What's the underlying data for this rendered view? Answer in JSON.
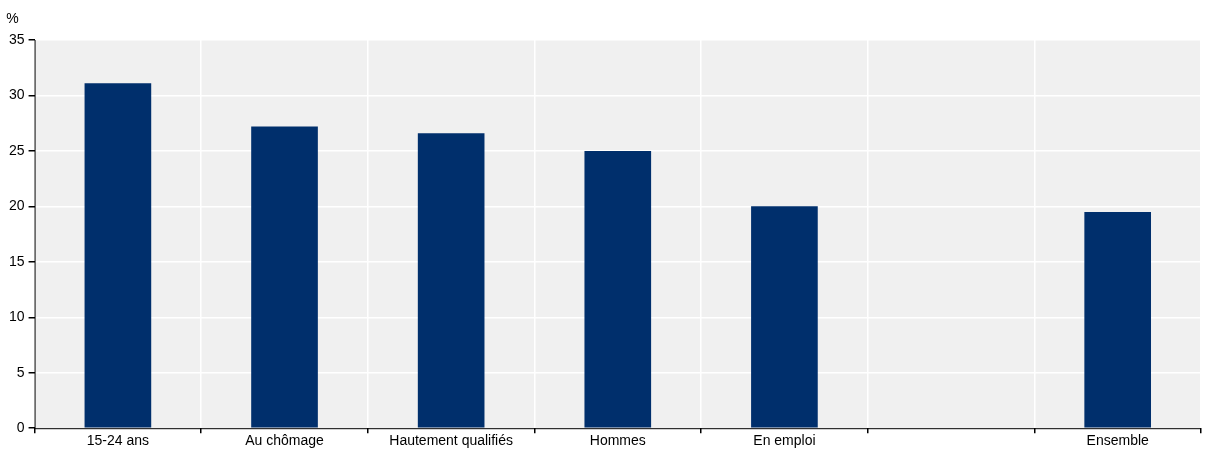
{
  "chart_data": {
    "type": "bar",
    "ylabel": "%",
    "categories": [
      "15-24 ans",
      "Au chômage",
      "Hautement qualifiés",
      "Hommes",
      "En emploi",
      null,
      "Ensemble"
    ],
    "values": [
      31.1,
      27.2,
      26.6,
      25,
      20,
      null,
      19.5
    ],
    "color": "#002f6c",
    "ylim": [
      0,
      35
    ],
    "yticks": [
      0,
      5,
      10,
      15,
      20,
      25,
      30,
      35
    ],
    "grid": true,
    "legend": false
  }
}
